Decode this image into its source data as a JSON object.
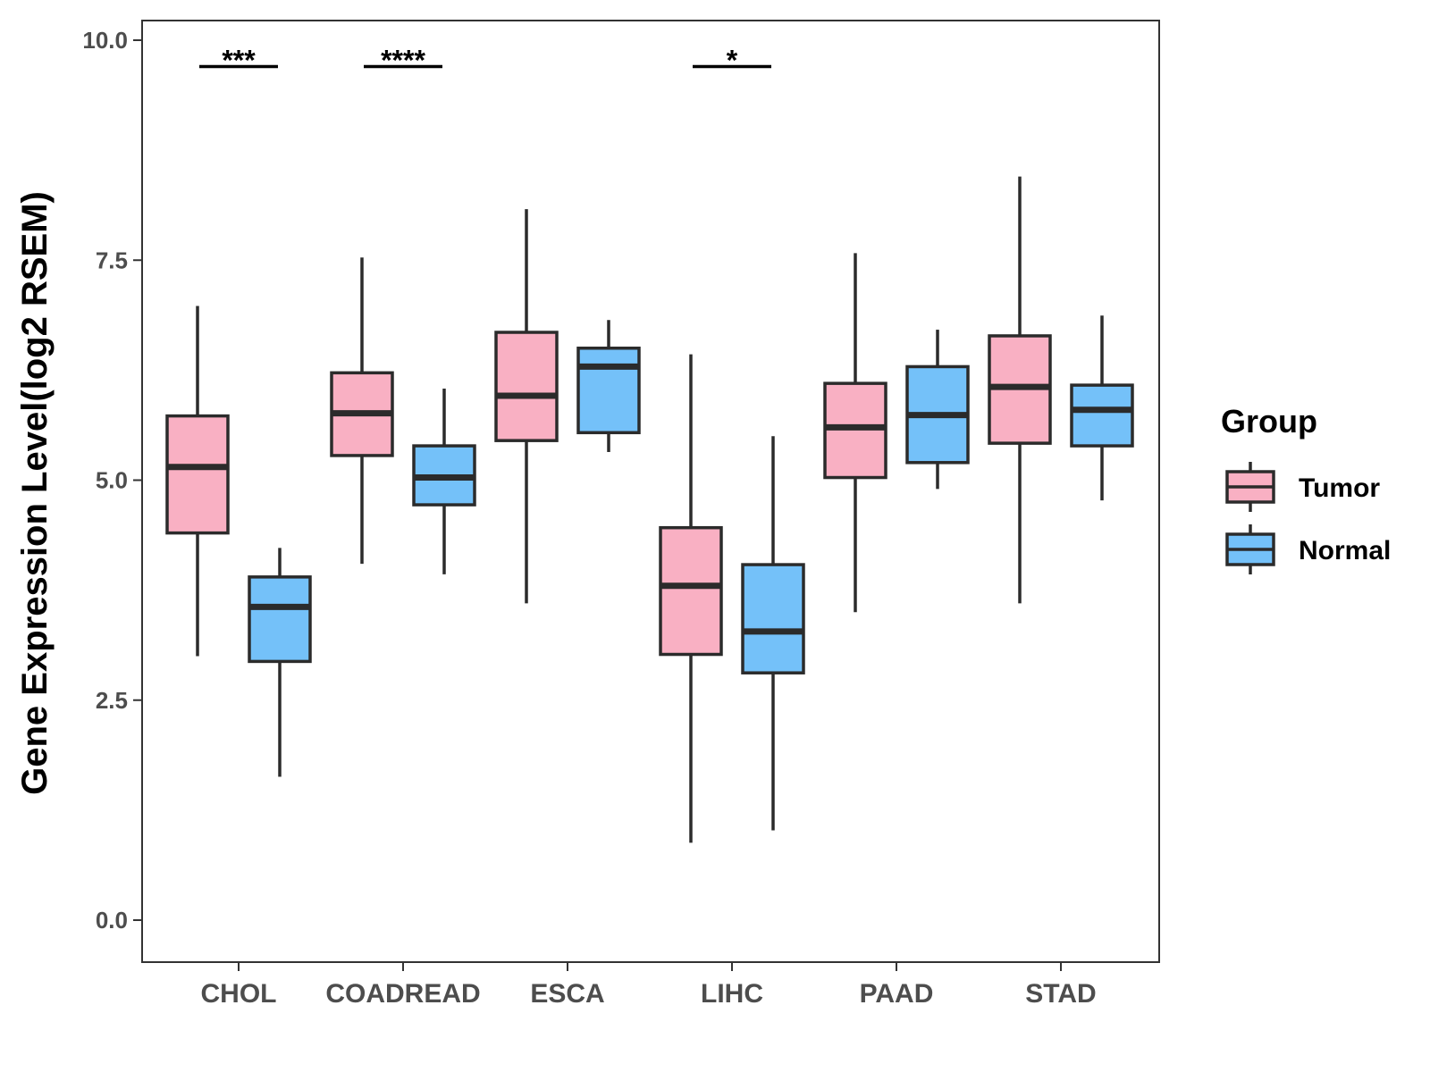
{
  "chart_data": {
    "type": "boxplot",
    "title": "",
    "xlabel": "",
    "ylabel": "Gene Expression Level(log2 RSEM)",
    "ylim": [
      -0.5,
      10.2
    ],
    "yticks": [
      0.0,
      2.5,
      5.0,
      7.5,
      10.0
    ],
    "ytick_labels": [
      "0.0",
      "2.5",
      "5.0",
      "7.5",
      "10.0"
    ],
    "categories": [
      "CHOL",
      "COADREAD",
      "ESCA",
      "LIHC",
      "PAAD",
      "STAD"
    ],
    "legend": {
      "title": "Group",
      "position": "right",
      "entries": [
        {
          "name": "Tumor",
          "color": "#f9b0c3"
        },
        {
          "name": "Normal",
          "color": "#74c1f9"
        }
      ]
    },
    "series": [
      {
        "name": "Tumor",
        "color": "#f9b0c3",
        "boxes": [
          {
            "category": "CHOL",
            "min": 3.0,
            "q1": 4.4,
            "median": 5.15,
            "q3": 5.73,
            "max": 6.98
          },
          {
            "category": "COADREAD",
            "min": 4.05,
            "q1": 5.28,
            "median": 5.76,
            "q3": 6.22,
            "max": 7.53
          },
          {
            "category": "ESCA",
            "min": 3.6,
            "q1": 5.45,
            "median": 5.96,
            "q3": 6.68,
            "max": 8.08
          },
          {
            "category": "LIHC",
            "min": 0.88,
            "q1": 3.02,
            "median": 3.8,
            "q3": 4.46,
            "max": 6.43
          },
          {
            "category": "PAAD",
            "min": 3.5,
            "q1": 5.03,
            "median": 5.6,
            "q3": 6.1,
            "max": 7.58
          },
          {
            "category": "STAD",
            "min": 3.6,
            "q1": 5.42,
            "median": 6.06,
            "q3": 6.64,
            "max": 8.45
          }
        ]
      },
      {
        "name": "Normal",
        "color": "#74c1f9",
        "boxes": [
          {
            "category": "CHOL",
            "min": 1.63,
            "q1": 2.94,
            "median": 3.56,
            "q3": 3.9,
            "max": 4.23
          },
          {
            "category": "COADREAD",
            "min": 3.93,
            "q1": 4.72,
            "median": 5.03,
            "q3": 5.39,
            "max": 6.04
          },
          {
            "category": "ESCA",
            "min": 5.32,
            "q1": 5.54,
            "median": 6.29,
            "q3": 6.5,
            "max": 6.82
          },
          {
            "category": "LIHC",
            "min": 1.02,
            "q1": 2.81,
            "median": 3.28,
            "q3": 4.04,
            "max": 5.5
          },
          {
            "category": "PAAD",
            "min": 4.9,
            "q1": 5.2,
            "median": 5.74,
            "q3": 6.29,
            "max": 6.71
          },
          {
            "category": "STAD",
            "min": 4.77,
            "q1": 5.39,
            "median": 5.8,
            "q3": 6.08,
            "max": 6.87
          }
        ]
      }
    ],
    "annotations": [
      {
        "category": "CHOL",
        "label": "***",
        "y": 9.7
      },
      {
        "category": "COADREAD",
        "label": "****",
        "y": 9.7
      },
      {
        "category": "LIHC",
        "label": "*",
        "y": 9.7
      }
    ]
  }
}
